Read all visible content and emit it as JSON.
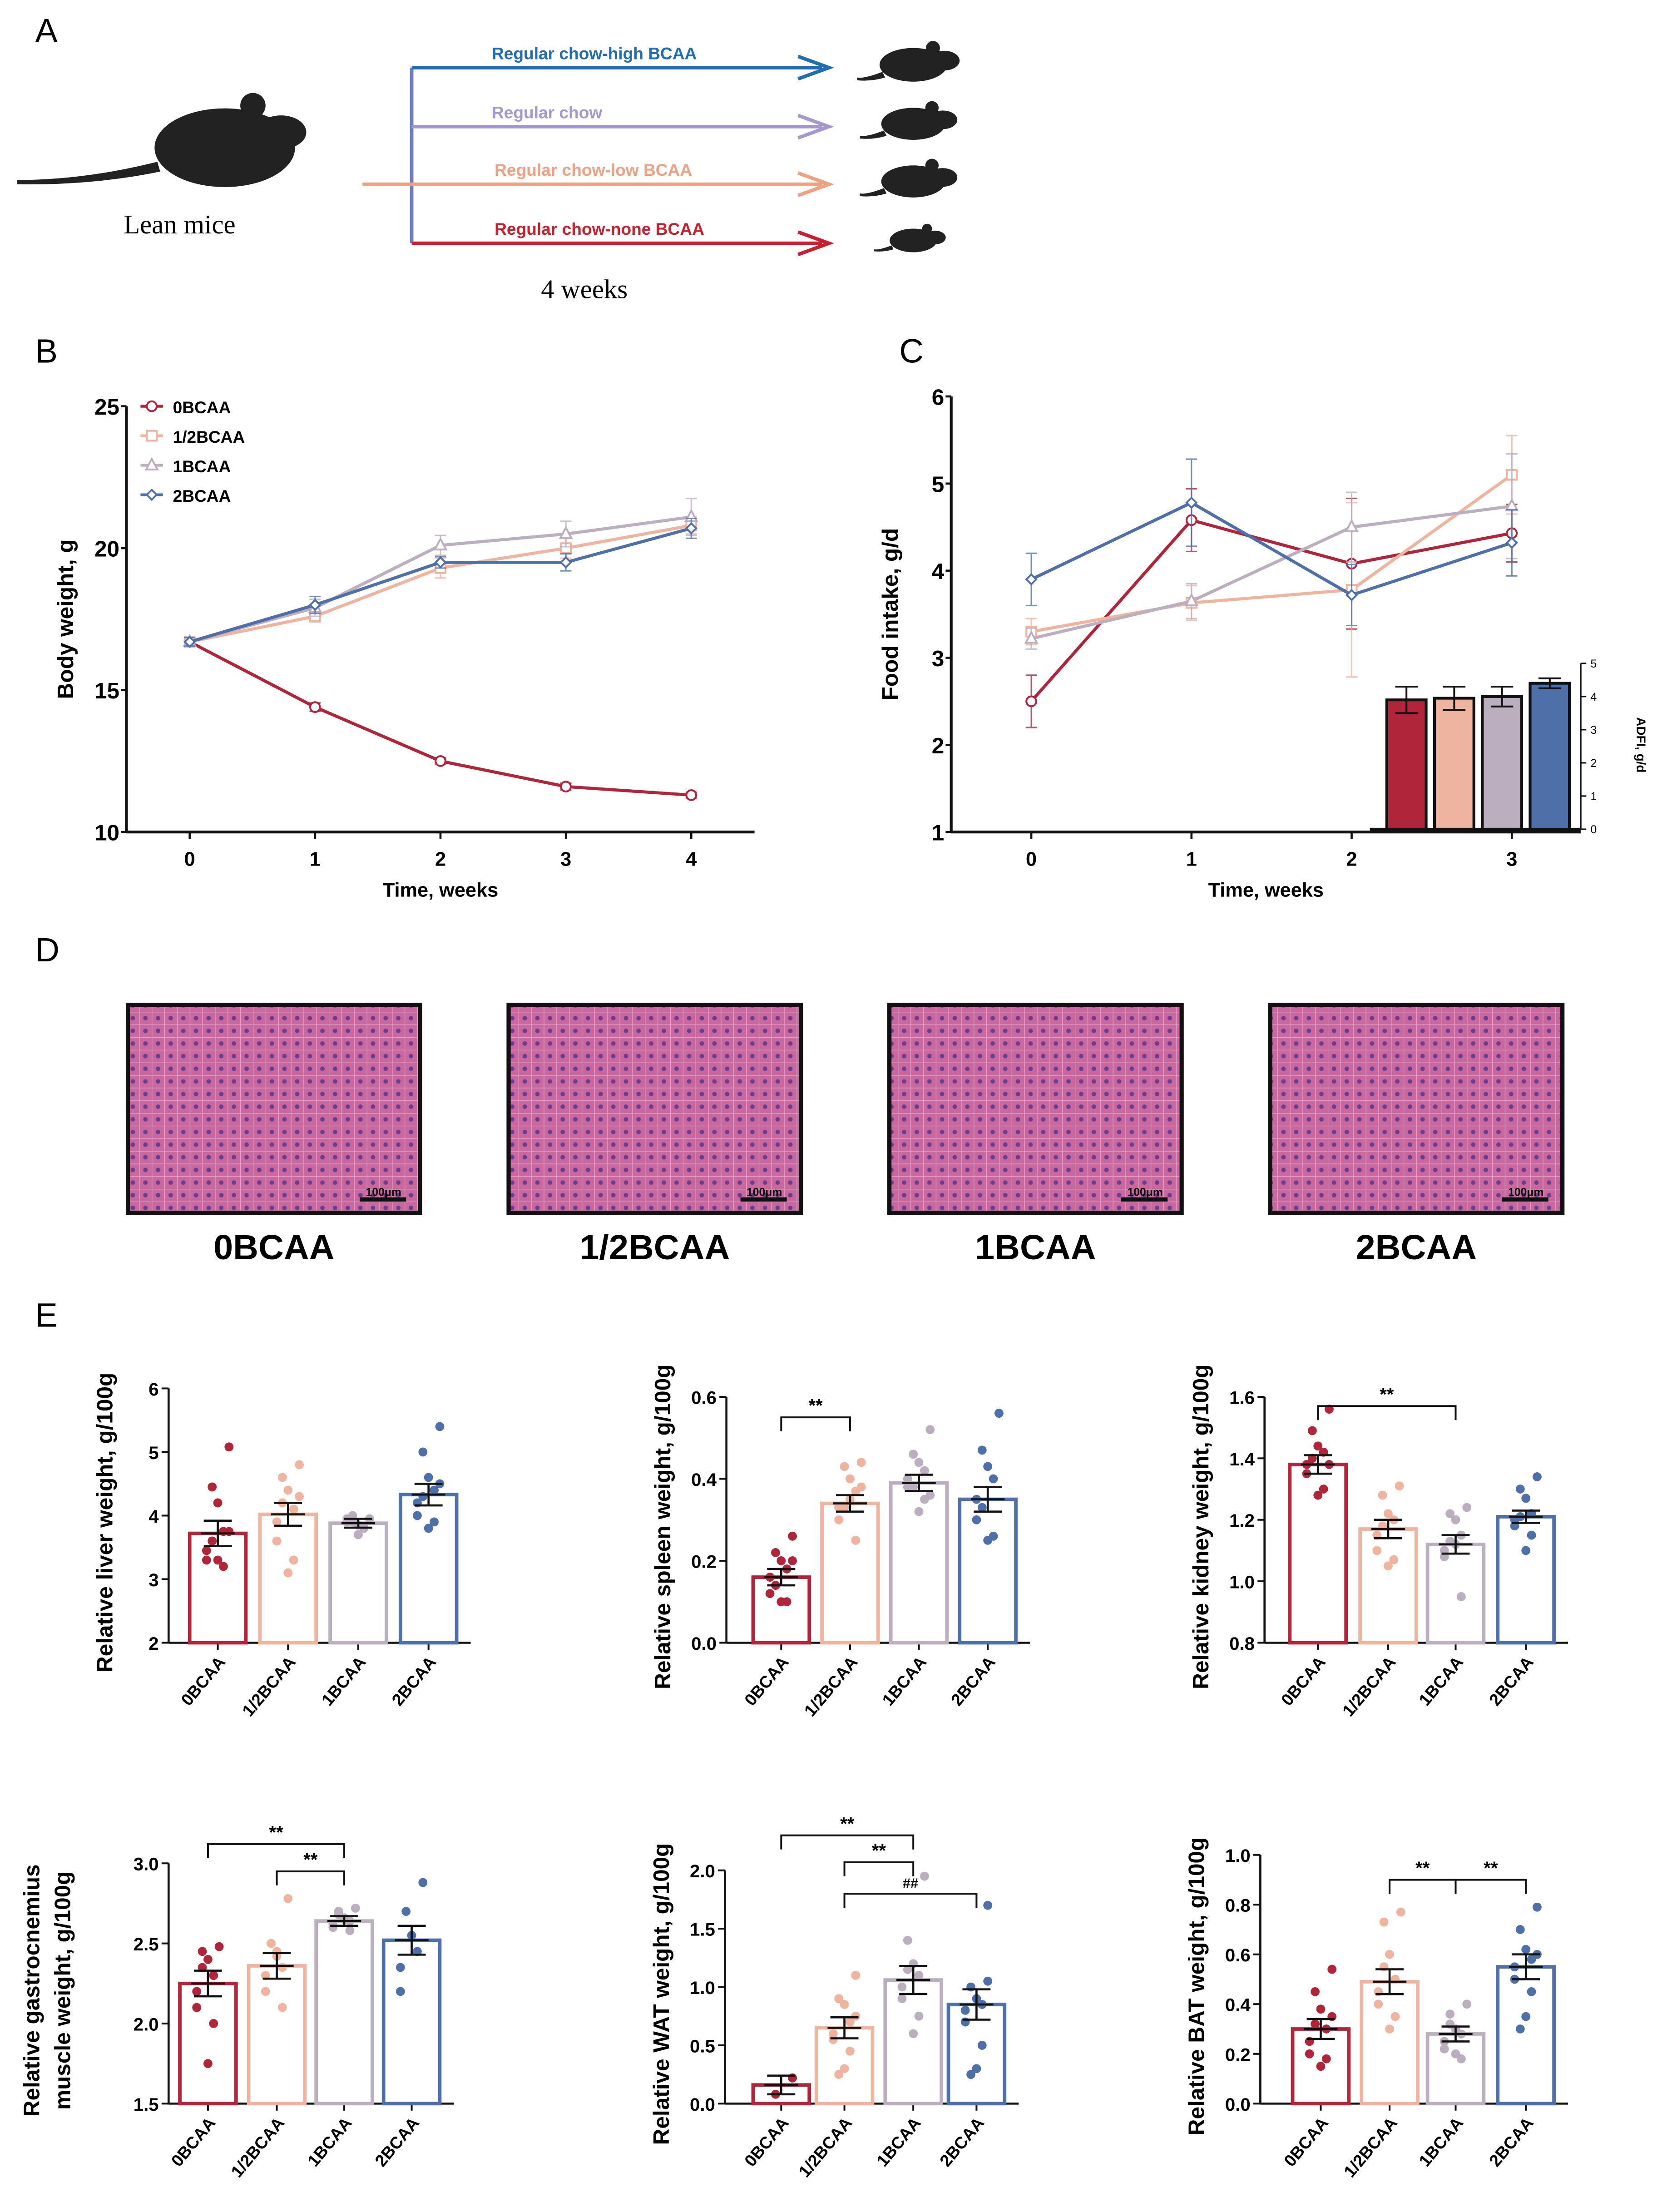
{
  "panel_labels": [
    "A",
    "B",
    "C",
    "D",
    "E"
  ],
  "colors": {
    "0BCAA": "#b0253a",
    "1/2BCAA": "#efb4a0",
    "1BCAA": "#bbaebf",
    "2BCAA": "#4f6fa9"
  },
  "panel_a": {
    "start_label": "Lean mice",
    "duration_label": "4 weeks",
    "arrows": [
      {
        "label": "Regular chow-high BCAA",
        "color": "#1f6db3"
      },
      {
        "label": "Regular chow",
        "color": "#a598cf"
      },
      {
        "label": "Regular chow-low BCAA",
        "color": "#f0a184"
      },
      {
        "label": "Regular chow-none BCAA",
        "color": "#c8202e"
      }
    ]
  },
  "panel_d": {
    "images": [
      {
        "label": "0BCAA",
        "scale_bar": "100μm"
      },
      {
        "label": "1/2BCAA",
        "scale_bar": "100μm"
      },
      {
        "label": "1BCAA",
        "scale_bar": "100μm"
      },
      {
        "label": "2BCAA",
        "scale_bar": "100μm"
      }
    ]
  },
  "chart_data": [
    {
      "id": "B",
      "type": "line",
      "xlabel": "Time, weeks",
      "ylabel": "Body weight, g",
      "x": [
        0,
        1,
        2,
        3,
        4
      ],
      "xticks": [
        "0",
        "1",
        "2",
        "3",
        "4"
      ],
      "ylim": [
        10,
        25
      ],
      "yticks": [
        10,
        15,
        20,
        25
      ],
      "legend": "top-left",
      "series": [
        {
          "name": "0BCAA",
          "marker": "circle",
          "values": [
            16.7,
            14.4,
            12.5,
            11.6,
            11.3
          ],
          "err": [
            0.15,
            0.15,
            0.12,
            0.12,
            0.1
          ]
        },
        {
          "name": "1/2BCAA",
          "marker": "square",
          "values": [
            16.7,
            17.6,
            19.3,
            20.0,
            20.8
          ],
          "err": [
            0.15,
            0.2,
            0.35,
            0.35,
            0.3
          ]
        },
        {
          "name": "1BCAA",
          "marker": "triangle",
          "values": [
            16.7,
            17.9,
            20.1,
            20.5,
            21.1
          ],
          "err": [
            0.15,
            0.3,
            0.35,
            0.45,
            0.65
          ]
        },
        {
          "name": "2BCAA",
          "marker": "diamond",
          "values": [
            16.7,
            18.0,
            19.5,
            19.5,
            20.7
          ],
          "err": [
            0.15,
            0.3,
            0.2,
            0.3,
            0.35
          ]
        }
      ]
    },
    {
      "id": "C",
      "type": "line",
      "xlabel": "Time, weeks",
      "ylabel": "Food intake, g/d",
      "x": [
        0,
        1,
        2,
        3
      ],
      "xticks": [
        "0",
        "1",
        "2",
        "3"
      ],
      "ylim": [
        1,
        6
      ],
      "yticks": [
        1,
        2,
        3,
        4,
        5,
        6
      ],
      "series": [
        {
          "name": "0BCAA",
          "marker": "circle",
          "values": [
            2.5,
            4.58,
            4.08,
            4.43
          ],
          "err": [
            0.3,
            0.36,
            0.75,
            0.33
          ]
        },
        {
          "name": "1/2BCAA",
          "marker": "square",
          "values": [
            3.3,
            3.63,
            3.78,
            5.1
          ],
          "err": [
            0.15,
            0.2,
            1.0,
            0.45
          ]
        },
        {
          "name": "1BCAA",
          "marker": "triangle",
          "values": [
            3.22,
            3.65,
            4.5,
            4.74
          ],
          "err": [
            0.12,
            0.2,
            0.4,
            0.6
          ]
        },
        {
          "name": "2BCAA",
          "marker": "diamond",
          "values": [
            3.9,
            4.78,
            3.72,
            4.32
          ],
          "err": [
            0.3,
            0.5,
            0.35,
            0.38
          ]
        }
      ],
      "inset": {
        "type": "bar",
        "ylabel": "ADFI, g/d",
        "ylim": [
          0,
          5
        ],
        "yticks": [
          0,
          1,
          2,
          3,
          4,
          5
        ],
        "categories": [
          "0BCAA",
          "1/2BCAA",
          "1BCAA",
          "2BCAA"
        ],
        "values": [
          3.9,
          3.95,
          4.0,
          4.4
        ],
        "err": [
          0.4,
          0.35,
          0.3,
          0.15
        ]
      }
    },
    {
      "id": "E1",
      "type": "bar",
      "ylabel": [
        "Relative liver weight, g/100g"
      ],
      "ylim": [
        2,
        6
      ],
      "yticks": [
        "2",
        "3",
        "4",
        "5",
        "6"
      ],
      "categories": [
        "0BCAA",
        "1/2BCAA",
        "1BCAA",
        "2BCAA"
      ],
      "values": [
        3.72,
        4.02,
        3.88,
        4.33
      ],
      "sem": [
        0.2,
        0.18,
        0.07,
        0.17
      ],
      "points": [
        [
          5.08,
          4.45,
          4.2,
          3.75,
          3.45,
          3.3,
          3.2,
          3.3,
          3.6,
          3.75
        ],
        [
          4.8,
          4.6,
          4.4,
          4.1,
          3.9,
          3.6,
          3.3,
          3.1,
          4.2,
          4.3
        ],
        [
          3.95,
          3.9,
          3.85,
          3.8,
          3.9,
          3.95,
          3.82,
          3.7,
          4.0
        ],
        [
          5.4,
          5.0,
          4.6,
          4.4,
          4.2,
          4.0,
          3.9,
          3.8,
          4.3,
          4.5
        ]
      ],
      "comparisons": []
    },
    {
      "id": "E2",
      "type": "bar",
      "ylabel": [
        "Relative spleen weight, g/100g"
      ],
      "ylim": [
        0,
        0.6
      ],
      "yticks": [
        "0.0",
        "0.2",
        "0.4",
        "0.6"
      ],
      "categories": [
        "0BCAA",
        "1/2BCAA",
        "1BCAA",
        "2BCAA"
      ],
      "values": [
        0.16,
        0.34,
        0.39,
        0.35
      ],
      "sem": [
        0.02,
        0.02,
        0.02,
        0.03
      ],
      "points": [
        [
          0.26,
          0.22,
          0.2,
          0.18,
          0.16,
          0.12,
          0.1,
          0.1,
          0.14,
          0.2
        ],
        [
          0.44,
          0.43,
          0.4,
          0.37,
          0.33,
          0.3,
          0.25,
          0.35,
          0.33,
          0.38
        ],
        [
          0.52,
          0.46,
          0.44,
          0.42,
          0.4,
          0.38,
          0.35,
          0.32,
          0.38,
          0.36
        ],
        [
          0.56,
          0.47,
          0.43,
          0.4,
          0.35,
          0.3,
          0.26,
          0.25,
          0.33
        ]
      ],
      "comparisons": [
        {
          "from": 0,
          "to": 1,
          "y": 0.55,
          "label": "**"
        }
      ]
    },
    {
      "id": "E3",
      "type": "bar",
      "ylabel": [
        "Relative kidney weight, g/100g"
      ],
      "ylim": [
        0.8,
        1.6
      ],
      "yticks": [
        "0.8",
        "1.0",
        "1.2",
        "1.4",
        "1.6"
      ],
      "categories": [
        "0BCAA",
        "1/2BCAA",
        "1BCAA",
        "2BCAA"
      ],
      "values": [
        1.38,
        1.17,
        1.12,
        1.21
      ],
      "sem": [
        0.03,
        0.03,
        0.03,
        0.02
      ],
      "points": [
        [
          1.56,
          1.49,
          1.44,
          1.42,
          1.38,
          1.35,
          1.3,
          1.28,
          1.4,
          1.38
        ],
        [
          1.31,
          1.28,
          1.22,
          1.2,
          1.15,
          1.1,
          1.07,
          1.05,
          1.18
        ],
        [
          1.24,
          1.22,
          1.2,
          1.15,
          1.1,
          1.08,
          0.95,
          1.12,
          1.13
        ],
        [
          1.34,
          1.3,
          1.27,
          1.22,
          1.2,
          1.18,
          1.15,
          1.1,
          1.21
        ]
      ],
      "comparisons": [
        {
          "from": 0,
          "to": 2,
          "y": 1.57,
          "label": "**"
        }
      ]
    },
    {
      "id": "E4",
      "type": "bar",
      "ylabel": [
        "Relative  gastrocnemius",
        "muscle weight, g/100g"
      ],
      "ylim": [
        1.5,
        3.0
      ],
      "yticks": [
        "1.5",
        "2.0",
        "2.5",
        "3.0"
      ],
      "categories": [
        "0BCAA",
        "1/2BCAA",
        "1BCAA",
        "2BCAA"
      ],
      "values": [
        2.25,
        2.36,
        2.64,
        2.52
      ],
      "sem": [
        0.08,
        0.08,
        0.03,
        0.09
      ],
      "points": [
        [
          2.48,
          2.45,
          2.4,
          2.3,
          2.2,
          2.1,
          2.0,
          1.75,
          2.35
        ],
        [
          2.78,
          2.5,
          2.42,
          2.35,
          2.3,
          2.2,
          2.1,
          2.45
        ],
        [
          2.72,
          2.68,
          2.66,
          2.64,
          2.62,
          2.6,
          2.58,
          2.65,
          2.7
        ],
        [
          2.88,
          2.7,
          2.55,
          2.45,
          2.35,
          2.2
        ]
      ],
      "comparisons": [
        {
          "from": 0,
          "to": 2,
          "y": 3.12,
          "label": "**"
        },
        {
          "from": 1,
          "to": 2,
          "y": 2.95,
          "label": "**"
        }
      ]
    },
    {
      "id": "E5",
      "type": "bar",
      "ylabel": [
        "Relative WAT weight, g/100g"
      ],
      "ylim": [
        0,
        2.0
      ],
      "yticks": [
        "0.0",
        "0.5",
        "1.0",
        "1.5",
        "2.0"
      ],
      "categories": [
        "0BCAA",
        "1/2BCAA",
        "1BCAA",
        "2BCAA"
      ],
      "values": [
        0.16,
        0.65,
        1.06,
        0.85
      ],
      "sem": [
        0.08,
        0.09,
        0.12,
        0.13
      ],
      "points": [
        [
          0.22,
          0.08
        ],
        [
          1.1,
          0.9,
          0.85,
          0.7,
          0.6,
          0.55,
          0.45,
          0.3,
          0.25,
          0.75
        ],
        [
          1.95,
          1.4,
          1.2,
          1.1,
          1.0,
          0.9,
          0.75,
          0.6,
          1.15
        ],
        [
          1.7,
          1.0,
          0.9,
          0.85,
          0.8,
          0.7,
          0.5,
          0.3,
          0.25,
          1.05
        ]
      ],
      "comparisons": [
        {
          "from": 0,
          "to": 2,
          "y": 2.3,
          "label": "**"
        },
        {
          "from": 1,
          "to": 2,
          "y": 2.07,
          "label": "**"
        },
        {
          "from": 1,
          "to": 3,
          "y": 1.8,
          "label": "##"
        }
      ]
    },
    {
      "id": "E6",
      "type": "bar",
      "ylabel": [
        "Relative BAT weight, g/100g"
      ],
      "ylim": [
        0,
        1.0
      ],
      "yticks": [
        "0.0",
        "0.2",
        "0.4",
        "0.6",
        "0.8",
        "1.0"
      ],
      "categories": [
        "0BCAA",
        "1/2BCAA",
        "1BCAA",
        "2BCAA"
      ],
      "values": [
        0.3,
        0.49,
        0.28,
        0.55
      ],
      "sem": [
        0.04,
        0.05,
        0.03,
        0.05
      ],
      "points": [
        [
          0.54,
          0.45,
          0.38,
          0.3,
          0.25,
          0.2,
          0.18,
          0.15,
          0.32,
          0.35
        ],
        [
          0.77,
          0.73,
          0.6,
          0.5,
          0.45,
          0.4,
          0.35,
          0.3,
          0.55
        ],
        [
          0.4,
          0.36,
          0.3,
          0.28,
          0.25,
          0.22,
          0.18,
          0.2,
          0.32
        ],
        [
          0.79,
          0.7,
          0.62,
          0.58,
          0.55,
          0.5,
          0.45,
          0.35,
          0.3,
          0.6
        ]
      ],
      "comparisons": [
        {
          "from": 1,
          "to": 2,
          "y": 0.9,
          "label": "**"
        },
        {
          "from": 2,
          "to": 3,
          "y": 0.9,
          "label": "**"
        }
      ]
    }
  ]
}
